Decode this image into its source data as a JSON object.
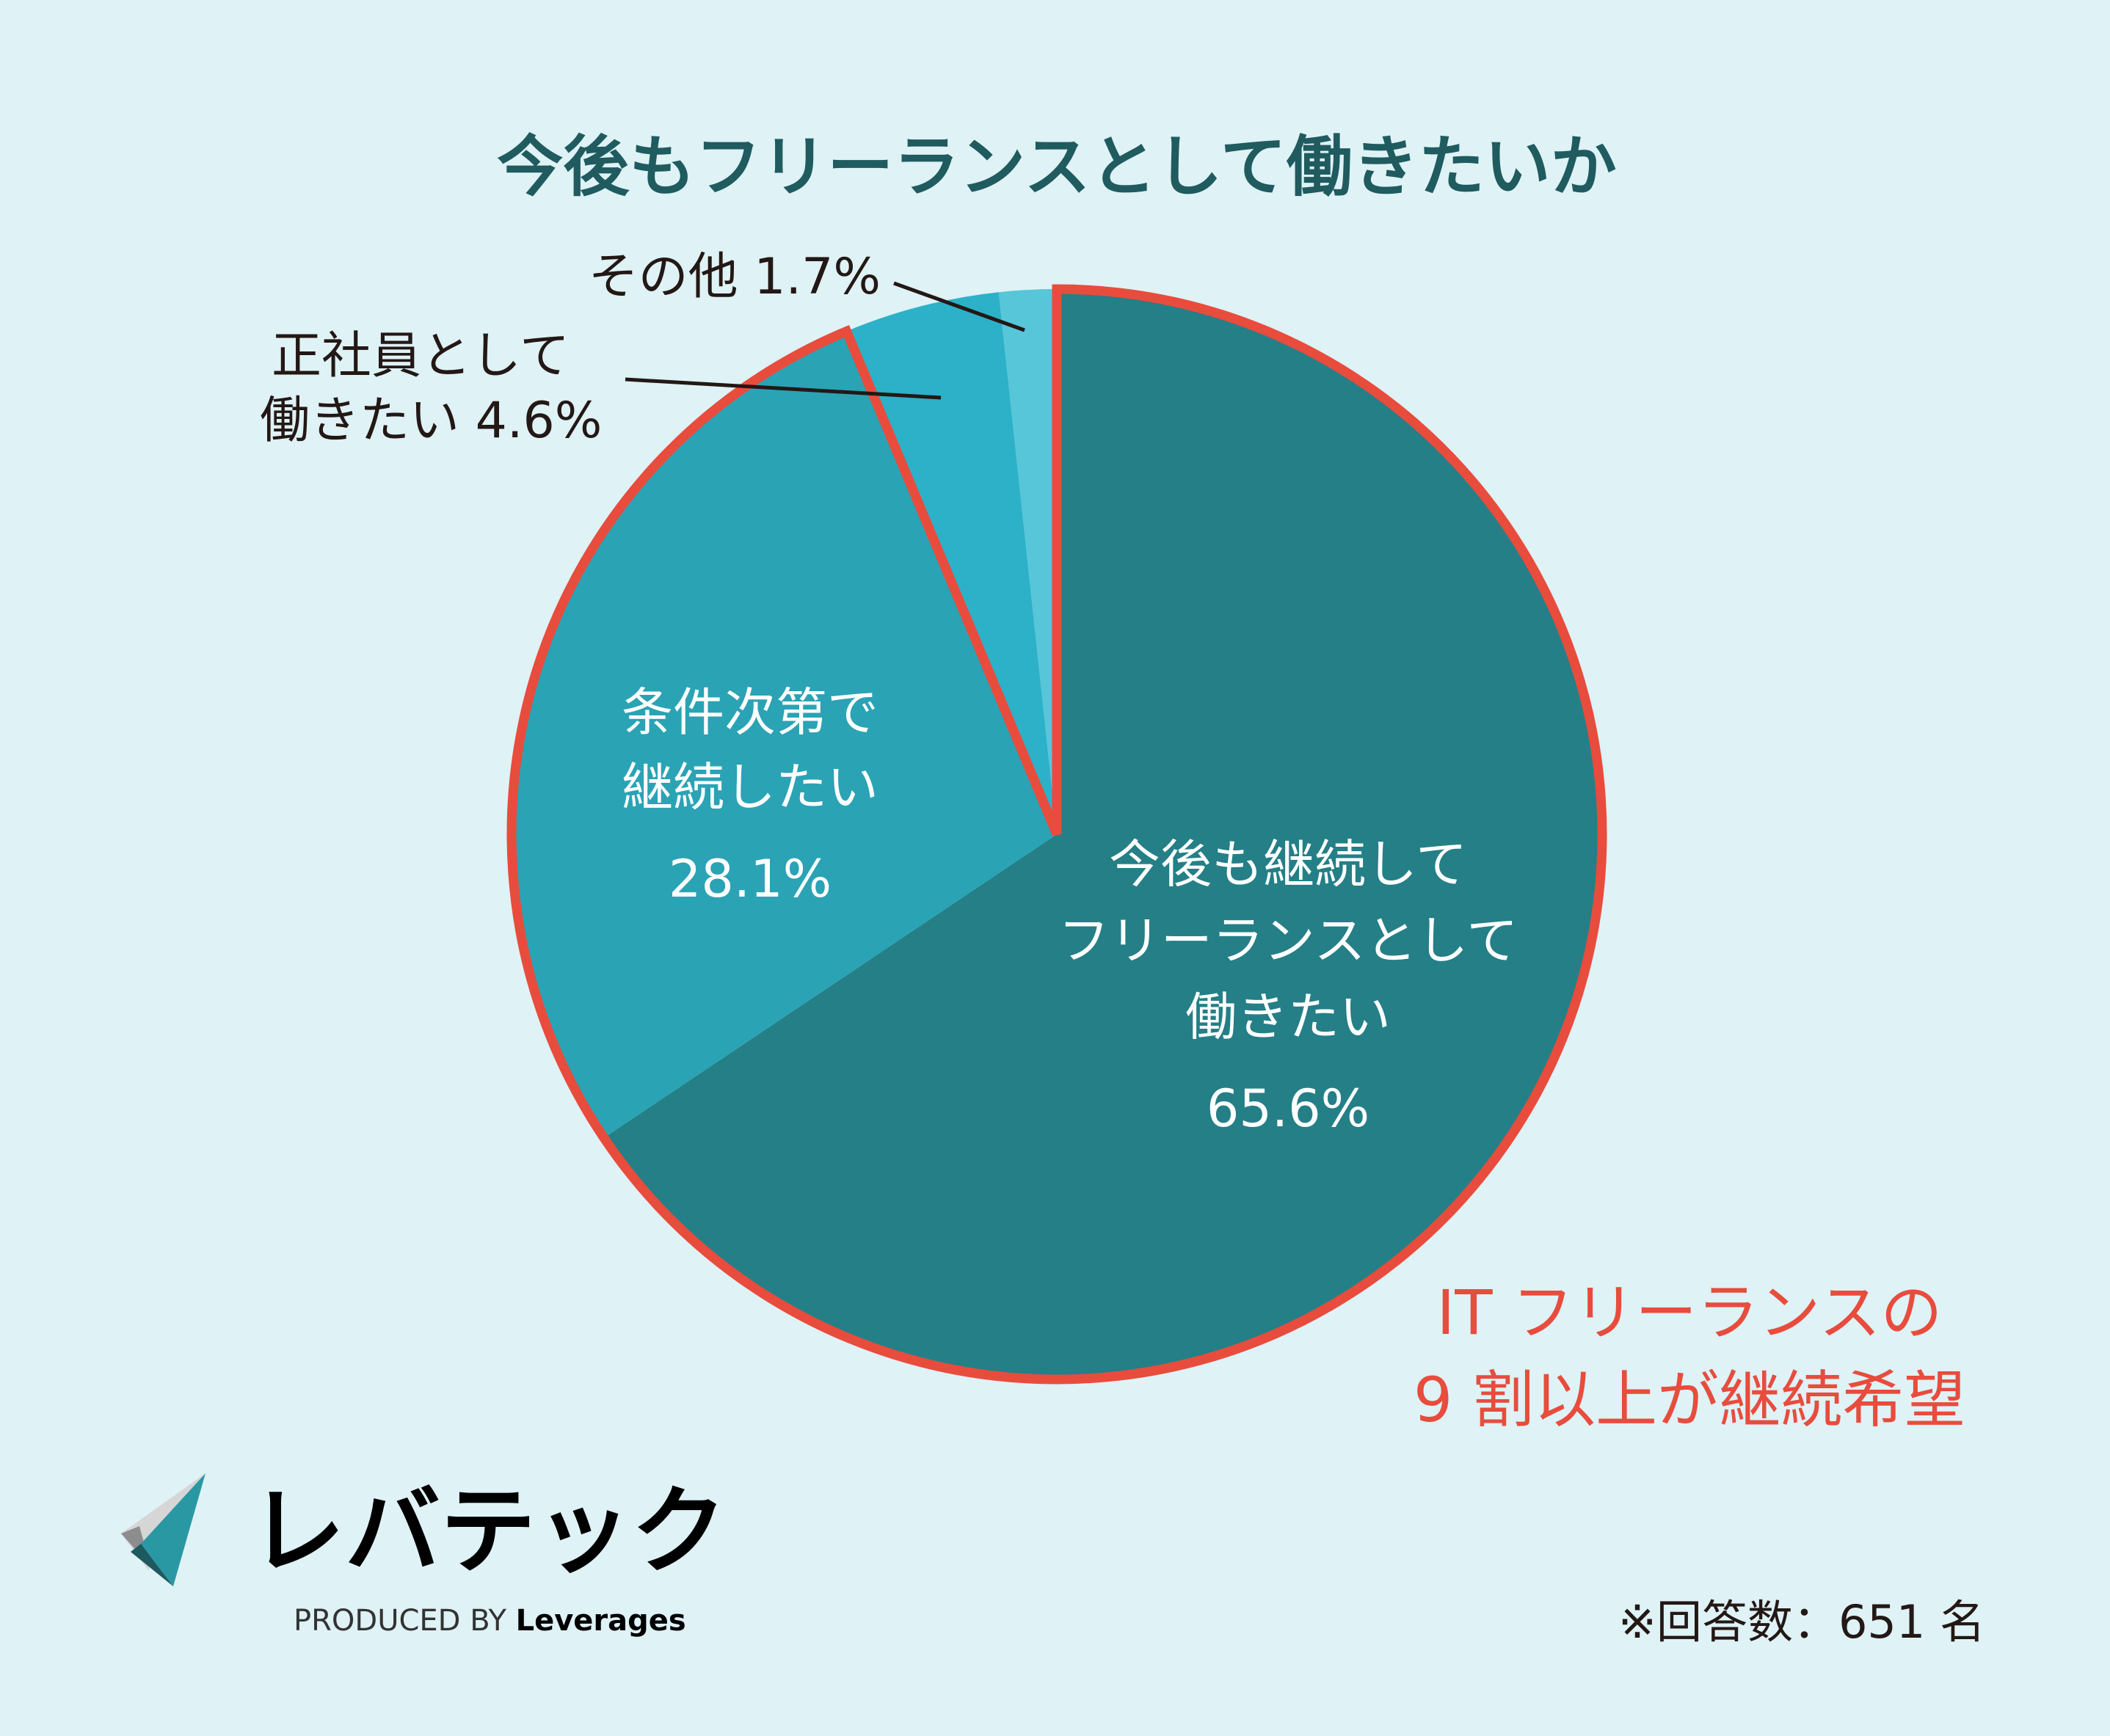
{
  "chart_data": {
    "type": "pie",
    "title": "今後もフリーランスとして働きたいか",
    "start": "top",
    "direction": "clockwise",
    "slices": [
      {
        "label": "今後も継続してフリーランスとして働きたい",
        "label_lines": [
          "今後も継続して",
          "フリーランスとして",
          "働きたい"
        ],
        "value": 65.6,
        "value_label": "65.6%",
        "color": "#247f87"
      },
      {
        "label": "条件次第で継続したい",
        "label_lines": [
          "条件次第で",
          "継続したい"
        ],
        "value": 28.1,
        "value_label": "28.1%",
        "color": "#2aa3b5"
      },
      {
        "label": "正社員として働きたい",
        "label_lines": [
          "正社員として",
          "働きたい"
        ],
        "value": 4.6,
        "value_label": "4.6%",
        "color": "#2cb1c8"
      },
      {
        "label": "その他",
        "label_lines": [
          "その他"
        ],
        "value": 1.7,
        "value_label": "1.7%",
        "color": "#56c6d8"
      }
    ],
    "highlight": {
      "slices": [
        0,
        1
      ],
      "outline_color": "#e84c3d"
    },
    "annotation": [
      "IT フリーランスの",
      "9 割以上が継続希望"
    ],
    "footnote": "※回答数：651 名"
  },
  "logo": {
    "name": "レバテック",
    "tagline_prefix": "PRODUCED BY",
    "tagline_brand": "Leverages"
  },
  "colors": {
    "background": "#dff2f6",
    "title": "#1f5b5f",
    "accent": "#e84c3d"
  }
}
